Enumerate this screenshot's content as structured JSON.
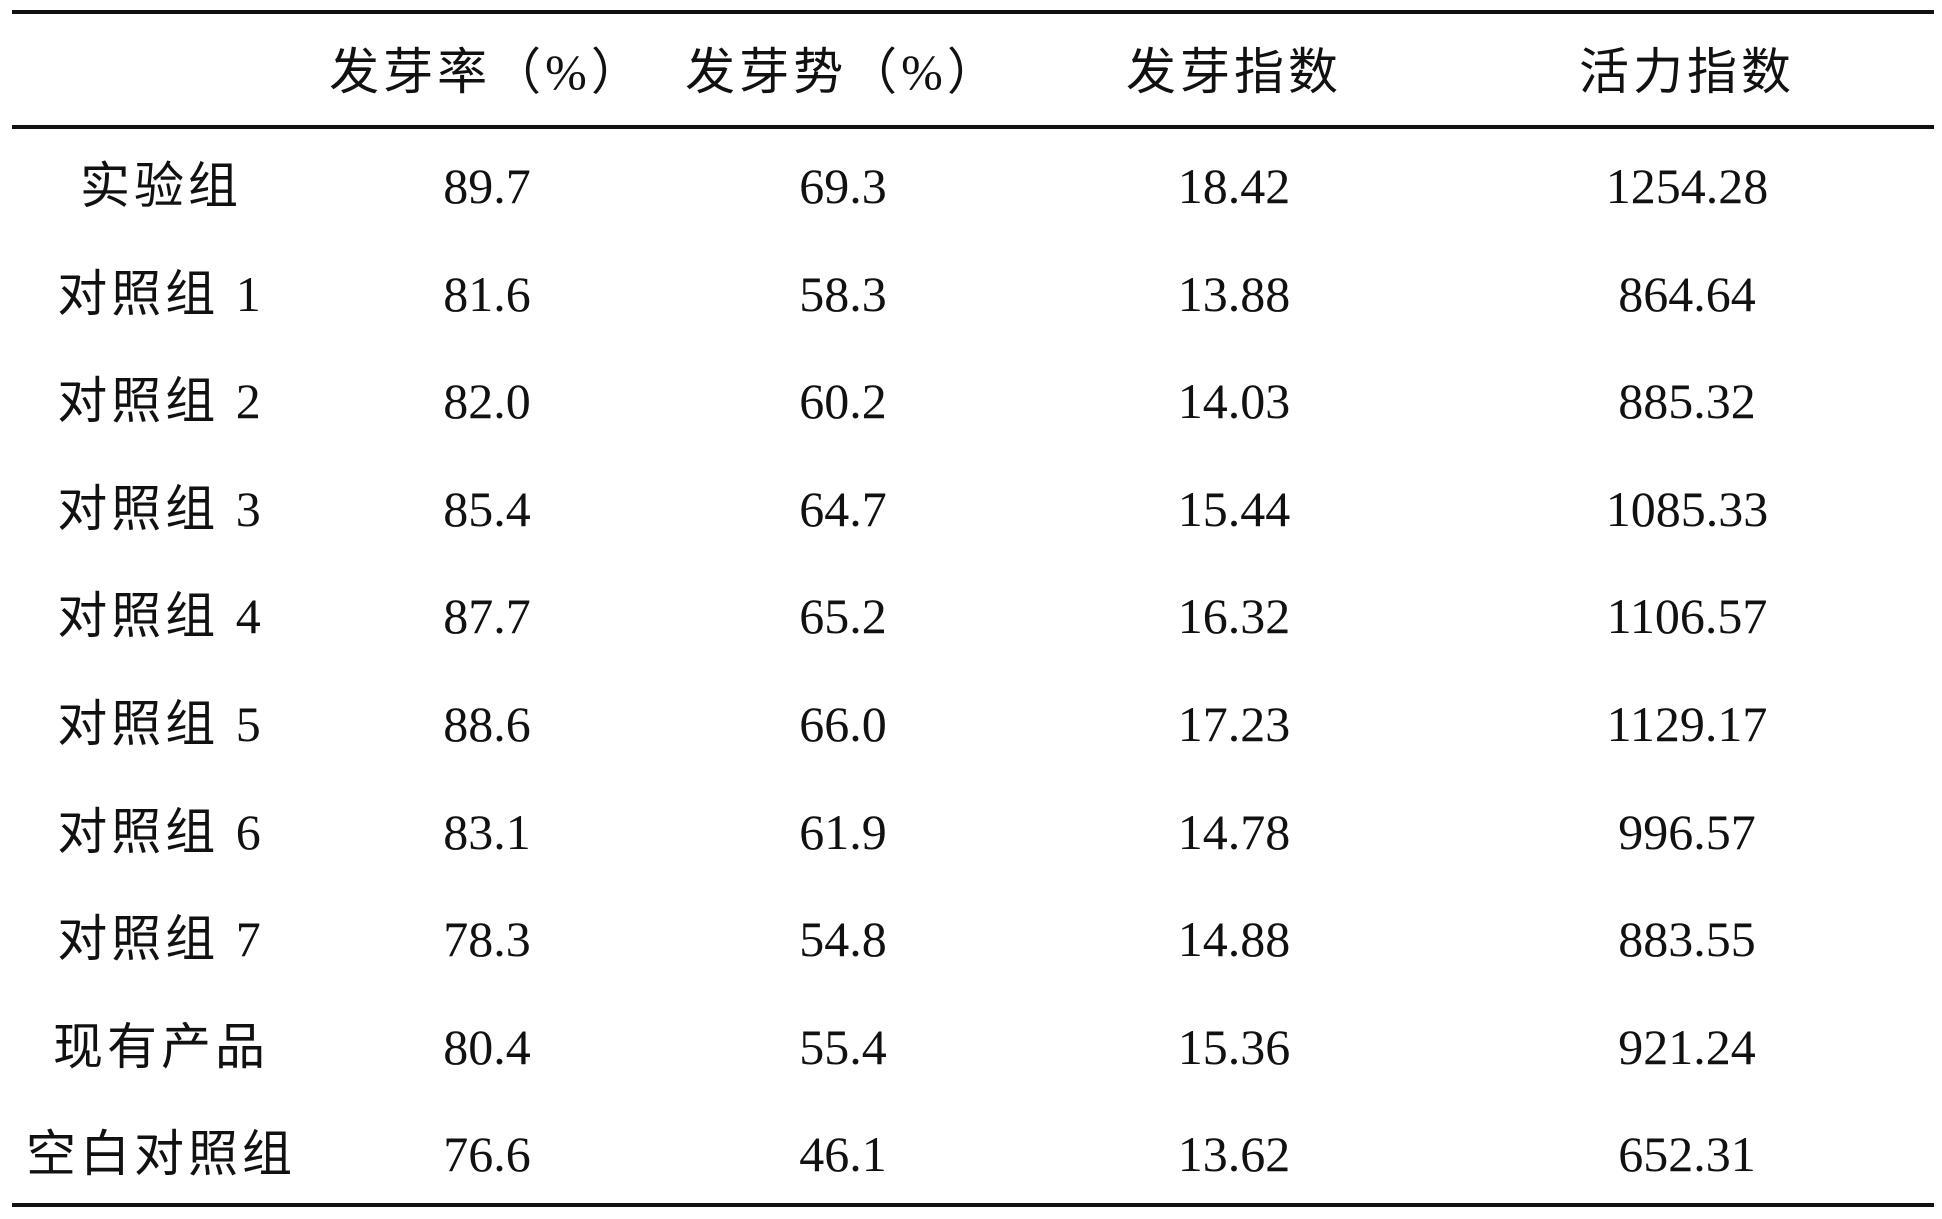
{
  "table": {
    "header": [
      "发芽率（%）",
      "发芽势（%）",
      "发芽指数",
      "活力指数"
    ],
    "rows": [
      [
        "实验组",
        "89.7",
        "69.3",
        "18.42",
        "1254.28"
      ],
      [
        "对照组 1",
        "81.6",
        "58.3",
        "13.88",
        "864.64"
      ],
      [
        "对照组 2",
        "82.0",
        "60.2",
        "14.03",
        "885.32"
      ],
      [
        "对照组 3",
        "85.4",
        "64.7",
        "15.44",
        "1085.33"
      ],
      [
        "对照组 4",
        "87.7",
        "65.2",
        "16.32",
        "1106.57"
      ],
      [
        "对照组 5",
        "88.6",
        "66.0",
        "17.23",
        "1129.17"
      ],
      [
        "对照组 6",
        "83.1",
        "61.9",
        "14.78",
        "996.57"
      ],
      [
        "对照组 7",
        "78.3",
        "54.8",
        "14.88",
        "883.55"
      ],
      [
        "现有产品",
        "80.4",
        "55.4",
        "15.36",
        "921.24"
      ],
      [
        "空白对照组",
        "76.6",
        "46.1",
        "13.62",
        "652.31"
      ]
    ]
  }
}
